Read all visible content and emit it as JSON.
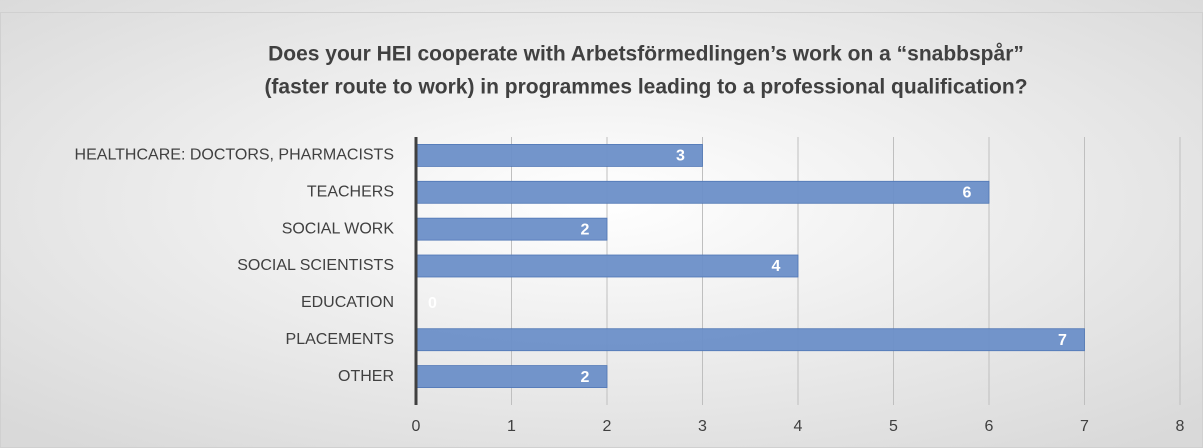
{
  "chart_data": {
    "type": "bar",
    "orientation": "horizontal",
    "title": [
      "Does your HEI cooperate with Arbetsförmedlingen’s work on a “snabbspår”",
      "(faster route to work) in programmes leading to a professional qualification?"
    ],
    "categories": [
      "HEALTHCARE: DOCTORS, PHARMACISTS",
      "TEACHERS",
      "SOCIAL WORK",
      "SOCIAL SCIENTISTS",
      "EDUCATION",
      "PLACEMENTS",
      "OTHER"
    ],
    "values": [
      3,
      6,
      2,
      4,
      0,
      7,
      2
    ],
    "color": "#6b8fc8",
    "xlim": [
      0,
      8
    ],
    "xticks": [
      0,
      1,
      2,
      3,
      4,
      5,
      6,
      7,
      8
    ],
    "grid": true
  }
}
